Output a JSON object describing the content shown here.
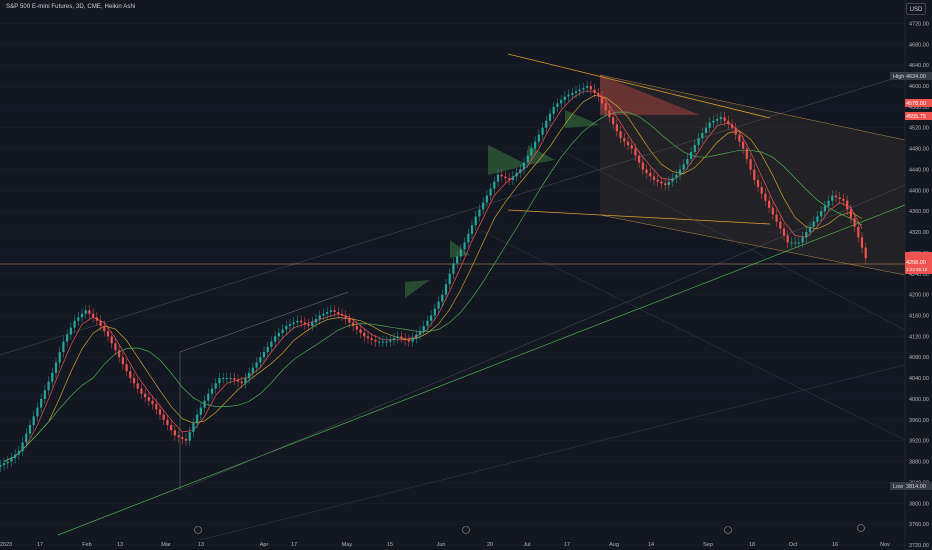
{
  "header": {
    "title": "S&P 500 E-mini Futures, 3D, CME, Heikin Ashi",
    "currency_label": "USD"
  },
  "colors": {
    "background": "#131722",
    "up": "#26a69a",
    "down": "#ef5350",
    "ma_fast": "#ef5350",
    "ma_mid": "#c9a227",
    "ma_slow": "#4caf50",
    "trend": "#e0a030"
  },
  "price_scale": {
    "labels": [
      "4720.00",
      "4680.00",
      "4640.00",
      "4600.00",
      "4560.00",
      "4520.00",
      "4480.00",
      "4440.00",
      "4400.00",
      "4360.00",
      "4320.00",
      "4280.00",
      "4240.00",
      "4200.00",
      "4160.00",
      "4120.00",
      "4080.00",
      "4040.00",
      "4000.00",
      "3960.00",
      "3920.00",
      "3880.00",
      "3840.00",
      "3800.00",
      "3760.00",
      "3720.00"
    ]
  },
  "time_scale": {
    "labels": [
      "2023",
      "17",
      "Feb",
      "13",
      "Mar",
      "13",
      "Apr",
      "17",
      "May",
      "15",
      "Jun",
      "20",
      "Jul",
      "17",
      "Aug",
      "14",
      "Sep",
      "18",
      "Oct",
      "16",
      "Nov"
    ]
  },
  "tags": {
    "high_label": "High",
    "high_value": "4634.00",
    "tag2_value": "4578.00",
    "tag3_value": "4555.75",
    "last_value": "4258.00",
    "last_sub": "1:23:45:10",
    "low_label": "Low",
    "low_value": "3814.00"
  },
  "chart_data": {
    "type": "candlestick",
    "title": "S&P 500 E-mini Futures, 3D, CME, Heikin Ashi",
    "ylim": [
      3720,
      4740
    ],
    "x": [
      "2023",
      "17",
      "Feb",
      "13",
      "Mar",
      "13",
      "Apr",
      "17",
      "May",
      "15",
      "Jun",
      "20",
      "Jul",
      "17",
      "Aug",
      "14",
      "Sep",
      "18",
      "Oct",
      "16",
      "Nov"
    ],
    "close_path": [
      3880,
      3900,
      3950,
      4000,
      4050,
      4110,
      4150,
      4170,
      4150,
      4120,
      4080,
      4040,
      4010,
      3990,
      3960,
      3930,
      3920,
      3970,
      4010,
      4040,
      4040,
      4030,
      4060,
      4090,
      4120,
      4140,
      4150,
      4140,
      4160,
      4170,
      4160,
      4140,
      4120,
      4110,
      4110,
      4120,
      4110,
      4130,
      4160,
      4200,
      4260,
      4300,
      4350,
      4390,
      4430,
      4420,
      4440,
      4480,
      4520,
      4560,
      4580,
      4590,
      4600,
      4580,
      4540,
      4500,
      4480,
      4440,
      4420,
      4410,
      4430,
      4460,
      4500,
      4530,
      4540,
      4520,
      4480,
      4420,
      4380,
      4340,
      4300,
      4300,
      4330,
      4360,
      4390,
      4380,
      4330,
      4270
    ],
    "last_price": 4258.0,
    "high": 4634.0,
    "low": 3814.0
  }
}
